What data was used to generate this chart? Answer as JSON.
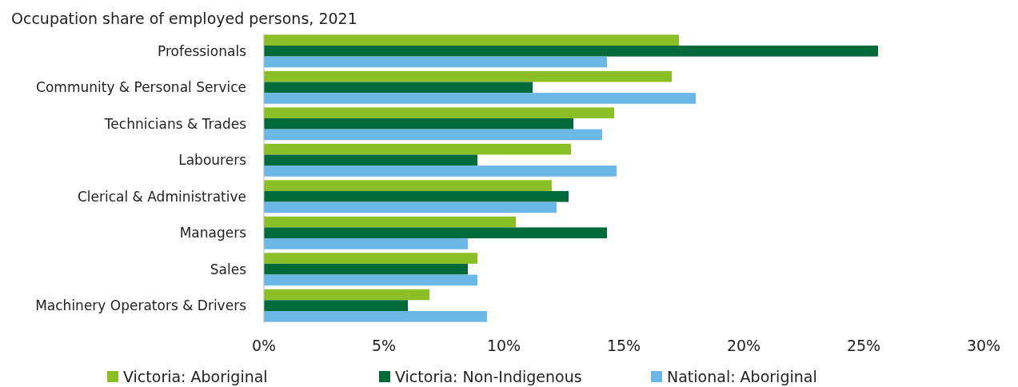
{
  "chart_data": {
    "type": "bar",
    "orientation": "horizontal",
    "title": "Occupation share of employed persons, 2021",
    "categories": [
      "Professionals",
      "Community & Personal Service",
      "Technicians & Trades",
      "Labourers",
      "Clerical & Administrative",
      "Managers",
      "Sales",
      "Machinery Operators & Drivers"
    ],
    "series": [
      {
        "name": "Victoria: Aboriginal",
        "color": "#8cbf26",
        "values": [
          17.3,
          17.0,
          14.6,
          12.8,
          12.0,
          10.5,
          8.9,
          6.9
        ]
      },
      {
        "name": "Victoria: Non-Indigenous",
        "color": "#006a3a",
        "values": [
          25.6,
          11.2,
          12.9,
          8.9,
          12.7,
          14.3,
          8.5,
          6.0
        ]
      },
      {
        "name": "National: Aboriginal",
        "color": "#6bb7e6",
        "values": [
          14.3,
          18.0,
          14.1,
          14.7,
          12.2,
          8.5,
          8.9,
          9.3
        ]
      }
    ],
    "xlim": [
      0,
      30
    ],
    "xticks": [
      {
        "value": 0,
        "label": "0%"
      },
      {
        "value": 5,
        "label": "5%"
      },
      {
        "value": 10,
        "label": "10%"
      },
      {
        "value": 15,
        "label": "15%"
      },
      {
        "value": 20,
        "label": "20%"
      },
      {
        "value": 25,
        "label": "25%"
      },
      {
        "value": 30,
        "label": "30%"
      }
    ],
    "grid": false,
    "legend": "bottom"
  }
}
